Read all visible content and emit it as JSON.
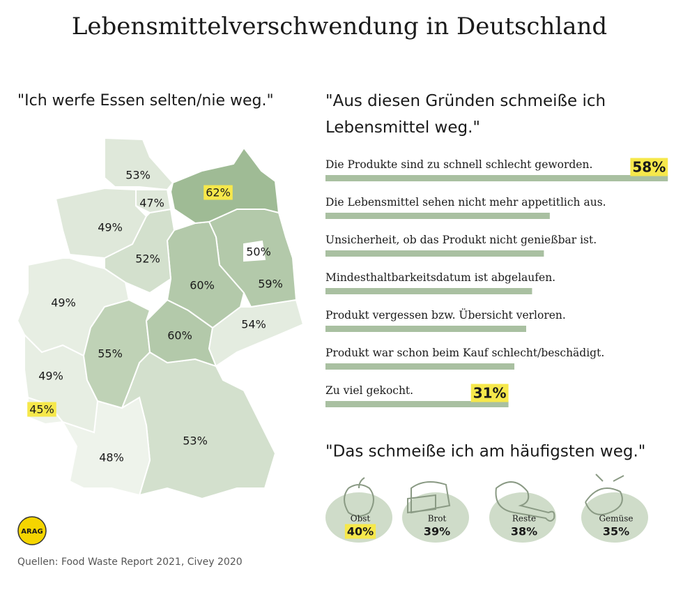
{
  "title": "Lebensmittelverschwendung in Deutschland",
  "source": "Quellen:  Food Waste Report 2021, Civey 2020",
  "logo": "ARAG",
  "chart_data": [
    {
      "type": "map",
      "title": "\"Ich werfe Essen selten/nie weg.\"",
      "values": [
        53,
        47,
        62,
        49,
        52,
        60,
        59,
        50,
        54,
        60,
        55,
        49,
        49,
        45,
        48,
        53
      ],
      "value_labels": [
        "53%",
        "47%",
        "62%",
        "49%",
        "52%",
        "60%",
        "59%",
        "50%",
        "54%",
        "60%",
        "55%",
        "49%",
        "49%",
        "45%",
        "48%",
        "53%"
      ],
      "colors": [
        "#dfe8da",
        "#dfe8da",
        "#9fbb95",
        "#dfe8da",
        "#d3e0cd",
        "#b3c9aa",
        "#b3c9aa",
        "#ffffff",
        "#e4ece0",
        "#b3c9aa",
        "#bfd2b6",
        "#e7eee3",
        "#e7eee3",
        "#eef3eb",
        "#eef3eb",
        "#d3e0cd"
      ],
      "highlighted": [
        2,
        13
      ]
    },
    {
      "type": "bar",
      "orientation": "horizontal",
      "title": "\"Aus diesen Gründen schmeiße ich Lebensmittel weg.\"",
      "categories": [
        "Die Produkte sind zu schnell schlecht geworden.",
        "Die Lebensmittel sehen nicht mehr appetitlich aus.",
        "Unsicherheit, ob das Produkt nicht genießbar ist.",
        "Mindesthaltbarkeitsdatum ist abgelaufen.",
        "Produkt vergessen bzw. Übersicht verloren.",
        "Produkt war schon beim Kauf schlecht/beschädigt.",
        "Zu viel gekocht."
      ],
      "values": [
        58,
        38,
        37,
        35,
        34,
        32,
        31
      ],
      "value_labels": [
        "58%",
        null,
        null,
        null,
        null,
        null,
        "31%"
      ],
      "color": "#a9c0a1"
    },
    {
      "type": "pictogram",
      "title": "\"Das schmeiße ich am häufigsten weg.\"",
      "categories": [
        "Obst",
        "Brot",
        "Reste",
        "Gemüse"
      ],
      "values": [
        40,
        39,
        38,
        35
      ],
      "value_labels": [
        "40%",
        "39%",
        "38%",
        "35%"
      ],
      "color": "#cfdcc9",
      "highlighted": [
        0
      ]
    }
  ]
}
